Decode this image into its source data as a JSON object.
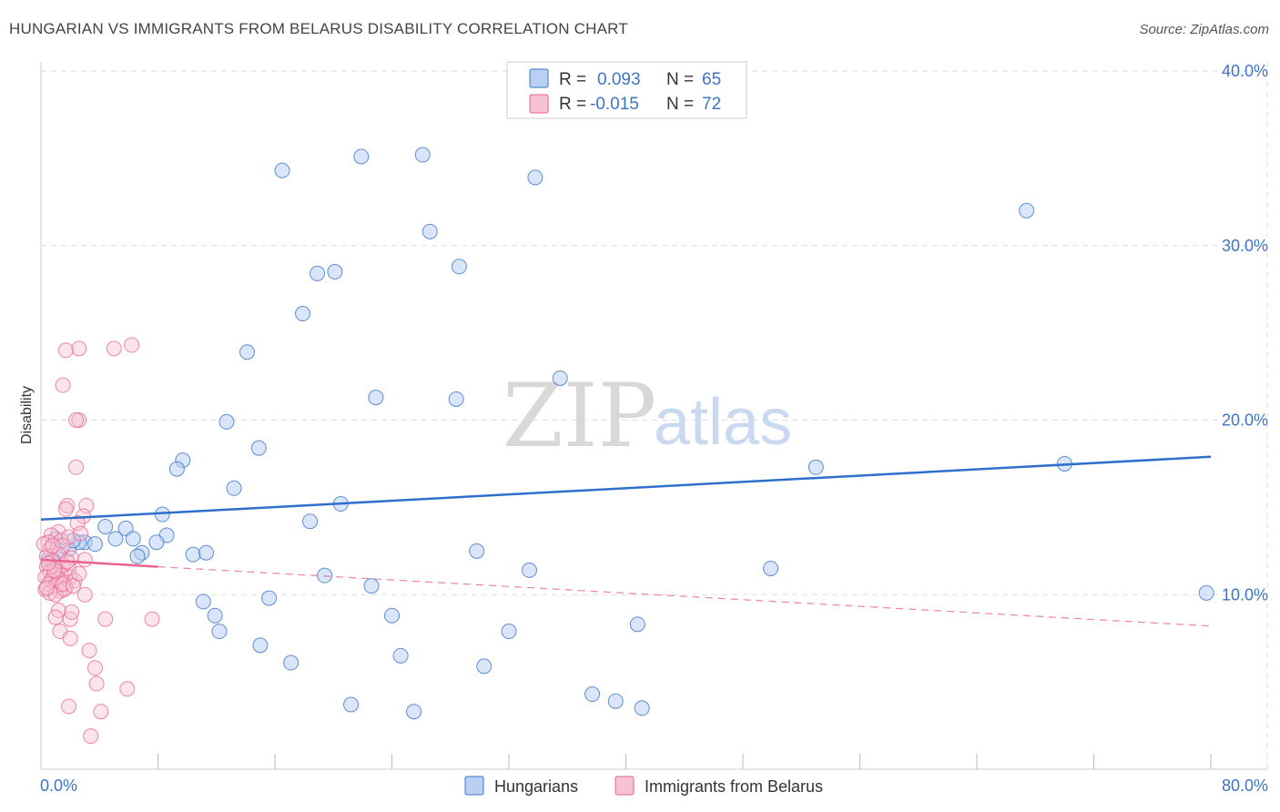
{
  "title": "HUNGARIAN VS IMMIGRANTS FROM BELARUS DISABILITY CORRELATION CHART",
  "source": "Source: ZipAtlas.com",
  "watermark": {
    "zip": "ZIP",
    "atlas": "atlas"
  },
  "colors": {
    "blue": "#3d74c4",
    "blue_fill": "#b9d0f2",
    "pink": "#e8638e",
    "pink_fill": "#f7c3d3",
    "grid": "#dddddd"
  },
  "chart_data": {
    "type": "scatter",
    "title": "HUNGARIAN VS IMMIGRANTS FROM BELARUS DISABILITY CORRELATION CHART",
    "xlabel": "",
    "ylabel": "Disability",
    "xlim": [
      0,
      80
    ],
    "ylim": [
      0,
      40
    ],
    "x_tick_labels": [
      "0.0%",
      "80.0%"
    ],
    "y_ticks": [
      10,
      20,
      30,
      40
    ],
    "y_tick_labels": [
      "10.0%",
      "20.0%",
      "30.0%",
      "40.0%"
    ],
    "legend_top": [
      {
        "r_label": "R =",
        "r_value": "0.093",
        "n_label": "N =",
        "n_value": "65"
      },
      {
        "r_label": "R =",
        "r_value": "-0.015",
        "n_label": "N =",
        "n_value": "72"
      }
    ],
    "series": [
      {
        "name": "Hungarians",
        "color": "#3d74c4",
        "trend": {
          "x": [
            0,
            80
          ],
          "y": [
            14.3,
            17.9
          ],
          "style": "solid"
        },
        "points": [
          [
            16.5,
            34.3
          ],
          [
            21.9,
            35.1
          ],
          [
            26.1,
            35.2
          ],
          [
            33.8,
            33.9
          ],
          [
            67.4,
            32.0
          ],
          [
            26.6,
            30.8
          ],
          [
            28.6,
            28.8
          ],
          [
            18.9,
            28.4
          ],
          [
            20.1,
            28.5
          ],
          [
            17.9,
            26.1
          ],
          [
            14.1,
            23.9
          ],
          [
            35.5,
            22.4
          ],
          [
            22.9,
            21.3
          ],
          [
            28.4,
            21.2
          ],
          [
            12.7,
            19.9
          ],
          [
            14.9,
            18.4
          ],
          [
            9.7,
            17.7
          ],
          [
            9.3,
            17.2
          ],
          [
            53.0,
            17.3
          ],
          [
            70.0,
            17.5
          ],
          [
            13.2,
            16.1
          ],
          [
            20.5,
            15.2
          ],
          [
            8.3,
            14.6
          ],
          [
            18.4,
            14.2
          ],
          [
            4.4,
            13.9
          ],
          [
            5.8,
            13.8
          ],
          [
            1.0,
            13.2
          ],
          [
            3.0,
            13.0
          ],
          [
            3.7,
            12.9
          ],
          [
            6.3,
            13.2
          ],
          [
            5.1,
            13.2
          ],
          [
            8.6,
            13.4
          ],
          [
            7.9,
            13.0
          ],
          [
            2.6,
            13.0
          ],
          [
            1.3,
            12.5
          ],
          [
            6.9,
            12.4
          ],
          [
            6.6,
            12.2
          ],
          [
            10.4,
            12.3
          ],
          [
            11.3,
            12.4
          ],
          [
            29.8,
            12.5
          ],
          [
            0.5,
            12.0
          ],
          [
            49.9,
            11.5
          ],
          [
            33.4,
            11.4
          ],
          [
            19.4,
            11.1
          ],
          [
            22.6,
            10.5
          ],
          [
            15.6,
            9.8
          ],
          [
            11.1,
            9.6
          ],
          [
            79.7,
            10.1
          ],
          [
            11.9,
            8.8
          ],
          [
            24.0,
            8.8
          ],
          [
            12.2,
            7.9
          ],
          [
            40.8,
            8.3
          ],
          [
            32.0,
            7.9
          ],
          [
            15.0,
            7.1
          ],
          [
            24.6,
            6.5
          ],
          [
            17.1,
            6.1
          ],
          [
            30.3,
            5.9
          ],
          [
            37.7,
            4.3
          ],
          [
            39.3,
            3.9
          ],
          [
            21.2,
            3.7
          ],
          [
            41.1,
            3.5
          ],
          [
            25.5,
            3.3
          ],
          [
            0.8,
            12.0
          ],
          [
            1.9,
            12.6
          ],
          [
            2.2,
            13.1
          ]
        ]
      },
      {
        "name": "Immigrants from Belarus",
        "color": "#e8638e",
        "trend": {
          "x": [
            0,
            8
          ],
          "y": [
            12.0,
            11.6
          ],
          "style": "solid",
          "ext_x": [
            8,
            80
          ],
          "ext_y": [
            11.6,
            8.2
          ],
          "ext_style": "dashed"
        },
        "points": [
          [
            6.2,
            24.3
          ],
          [
            5.0,
            24.1
          ],
          [
            2.6,
            24.1
          ],
          [
            1.7,
            24.0
          ],
          [
            1.5,
            22.0
          ],
          [
            2.6,
            20.0
          ],
          [
            2.4,
            20.0
          ],
          [
            2.4,
            17.3
          ],
          [
            3.1,
            15.1
          ],
          [
            1.8,
            15.1
          ],
          [
            1.7,
            14.9
          ],
          [
            2.9,
            14.5
          ],
          [
            2.5,
            14.1
          ],
          [
            1.2,
            13.6
          ],
          [
            0.7,
            13.4
          ],
          [
            0.5,
            13.0
          ],
          [
            1.4,
            13.1
          ],
          [
            1.9,
            13.3
          ],
          [
            1.5,
            12.8
          ],
          [
            0.6,
            12.6
          ],
          [
            1.2,
            12.3
          ],
          [
            2.1,
            12.1
          ],
          [
            0.4,
            12.2
          ],
          [
            3.0,
            12.0
          ],
          [
            0.8,
            11.9
          ],
          [
            1.5,
            11.7
          ],
          [
            0.4,
            11.6
          ],
          [
            1.1,
            11.5
          ],
          [
            1.9,
            11.5
          ],
          [
            0.6,
            11.3
          ],
          [
            0.9,
            11.2
          ],
          [
            1.4,
            11.1
          ],
          [
            2.0,
            11.0
          ],
          [
            0.3,
            11.0
          ],
          [
            1.2,
            10.9
          ],
          [
            0.7,
            10.8
          ],
          [
            1.6,
            10.7
          ],
          [
            2.3,
            10.8
          ],
          [
            0.5,
            10.6
          ],
          [
            1.0,
            10.5
          ],
          [
            1.7,
            10.4
          ],
          [
            0.3,
            10.3
          ],
          [
            1.3,
            10.2
          ],
          [
            0.6,
            10.1
          ],
          [
            1.0,
            10.0
          ],
          [
            1.6,
            10.3
          ],
          [
            3.0,
            10.0
          ],
          [
            0.4,
            10.4
          ],
          [
            1.2,
            9.1
          ],
          [
            1.0,
            8.7
          ],
          [
            2.0,
            8.6
          ],
          [
            4.4,
            8.6
          ],
          [
            7.6,
            8.6
          ],
          [
            2.1,
            9.0
          ],
          [
            1.3,
            7.9
          ],
          [
            2.0,
            7.5
          ],
          [
            3.3,
            6.8
          ],
          [
            3.7,
            5.8
          ],
          [
            3.8,
            4.9
          ],
          [
            5.9,
            4.6
          ],
          [
            1.9,
            3.6
          ],
          [
            4.1,
            3.3
          ],
          [
            3.4,
            1.9
          ],
          [
            0.9,
            11.4
          ],
          [
            1.8,
            11.9
          ],
          [
            2.6,
            11.2
          ],
          [
            0.2,
            12.9
          ],
          [
            2.7,
            13.5
          ],
          [
            0.8,
            12.8
          ],
          [
            1.5,
            10.6
          ],
          [
            2.2,
            10.5
          ],
          [
            0.5,
            11.8
          ]
        ]
      }
    ]
  },
  "bottom_legend": [
    {
      "label": "Hungarians"
    },
    {
      "label": "Immigrants from Belarus"
    }
  ]
}
